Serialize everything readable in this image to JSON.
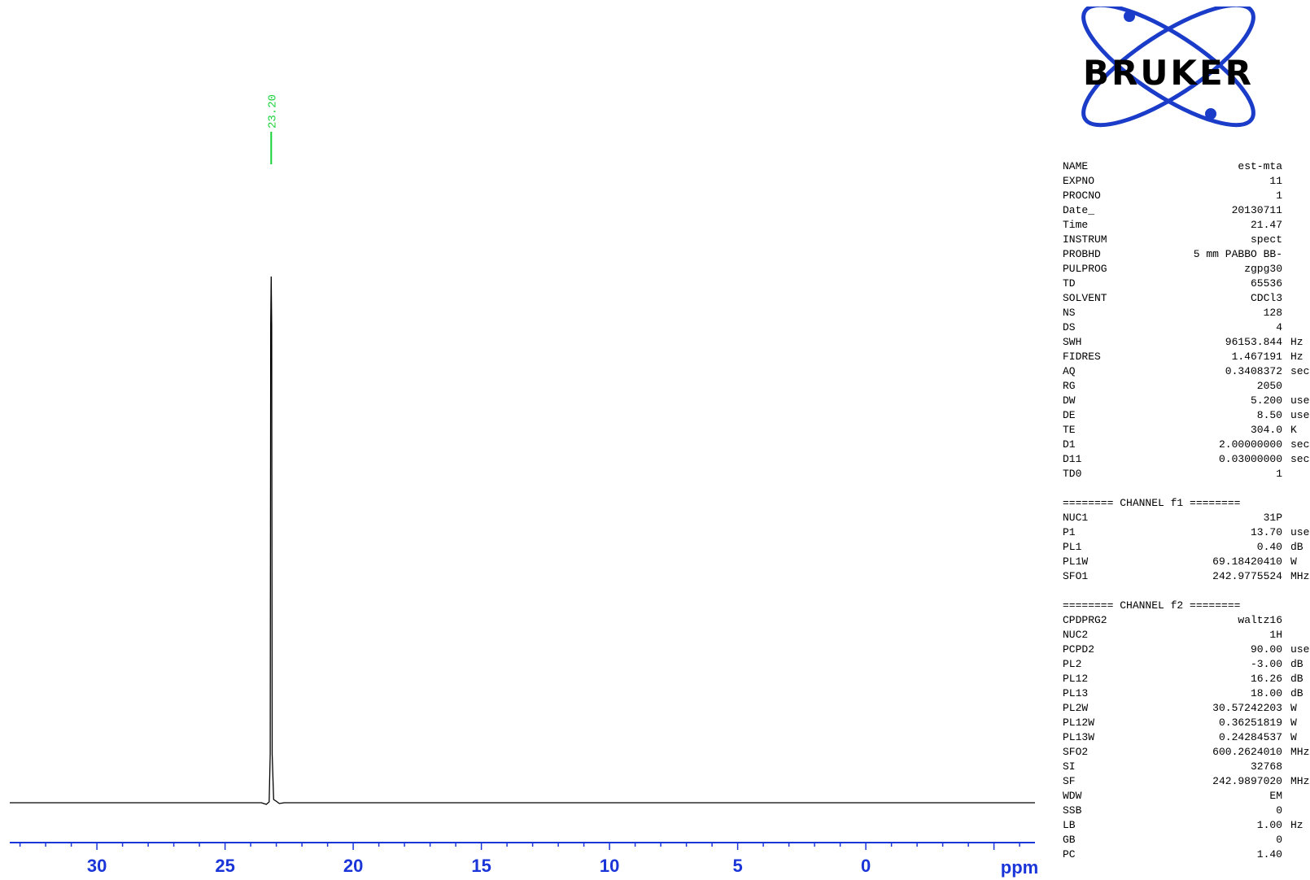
{
  "chart_data": {
    "type": "line",
    "x_axis": {
      "label": "ppm",
      "reversed": true,
      "range": [
        33.4,
        -6.6
      ],
      "ticks": [
        30,
        25,
        20,
        15,
        10,
        5,
        0
      ],
      "tick_labels": [
        "30",
        "25",
        "20",
        "15",
        "10",
        "5",
        "0"
      ],
      "color": "#1a35d8"
    },
    "peaks": [
      {
        "ppm": 23.2,
        "label": "23.20",
        "relative_height": 1.0
      }
    ],
    "peak_label_color": "#19d23a",
    "spectrum_color": "#000000"
  },
  "logo": {
    "text": "BRUKER",
    "color": "#1a3cc8"
  },
  "parameters": [
    {
      "name": "NAME",
      "value": "est-mta",
      "unit": ""
    },
    {
      "name": "EXPNO",
      "value": "11",
      "unit": ""
    },
    {
      "name": "PROCNO",
      "value": "1",
      "unit": ""
    },
    {
      "name": "Date_",
      "value": "20130711",
      "unit": ""
    },
    {
      "name": "Time",
      "value": "21.47",
      "unit": ""
    },
    {
      "name": "INSTRUM",
      "value": "spect",
      "unit": ""
    },
    {
      "name": "PROBHD",
      "value": "5 mm PABBO BB-",
      "unit": ""
    },
    {
      "name": "PULPROG",
      "value": "zgpg30",
      "unit": ""
    },
    {
      "name": "TD",
      "value": "65536",
      "unit": ""
    },
    {
      "name": "SOLVENT",
      "value": "CDCl3",
      "unit": ""
    },
    {
      "name": "NS",
      "value": "128",
      "unit": ""
    },
    {
      "name": "DS",
      "value": "4",
      "unit": ""
    },
    {
      "name": "SWH",
      "value": "96153.844",
      "unit": "Hz"
    },
    {
      "name": "FIDRES",
      "value": "1.467191",
      "unit": "Hz"
    },
    {
      "name": "AQ",
      "value": "0.3408372",
      "unit": "sec"
    },
    {
      "name": "RG",
      "value": "2050",
      "unit": ""
    },
    {
      "name": "DW",
      "value": "5.200",
      "unit": "usec"
    },
    {
      "name": "DE",
      "value": "8.50",
      "unit": "usec"
    },
    {
      "name": "TE",
      "value": "304.0",
      "unit": "K"
    },
    {
      "name": "D1",
      "value": "2.00000000",
      "unit": "sec"
    },
    {
      "name": "D11",
      "value": "0.03000000",
      "unit": "sec"
    },
    {
      "name": "TD0",
      "value": "1",
      "unit": ""
    },
    {
      "separator": "======== CHANNEL f1 ========"
    },
    {
      "name": "NUC1",
      "value": "31P",
      "unit": ""
    },
    {
      "name": "P1",
      "value": "13.70",
      "unit": "usec"
    },
    {
      "name": "PL1",
      "value": "0.40",
      "unit": "dB"
    },
    {
      "name": "PL1W",
      "value": "69.18420410",
      "unit": "W"
    },
    {
      "name": "SFO1",
      "value": "242.9775524",
      "unit": "MHz"
    },
    {
      "separator": "======== CHANNEL f2 ========"
    },
    {
      "name": "CPDPRG2",
      "value": "waltz16",
      "unit": ""
    },
    {
      "name": "NUC2",
      "value": "1H",
      "unit": ""
    },
    {
      "name": "PCPD2",
      "value": "90.00",
      "unit": "usec"
    },
    {
      "name": "PL2",
      "value": "-3.00",
      "unit": "dB"
    },
    {
      "name": "PL12",
      "value": "16.26",
      "unit": "dB"
    },
    {
      "name": "PL13",
      "value": "18.00",
      "unit": "dB"
    },
    {
      "name": "PL2W",
      "value": "30.57242203",
      "unit": "W"
    },
    {
      "name": "PL12W",
      "value": "0.36251819",
      "unit": "W"
    },
    {
      "name": "PL13W",
      "value": "0.24284537",
      "unit": "W"
    },
    {
      "name": "SFO2",
      "value": "600.2624010",
      "unit": "MHz"
    },
    {
      "name": "SI",
      "value": "32768",
      "unit": ""
    },
    {
      "name": "SF",
      "value": "242.9897020",
      "unit": "MHz"
    },
    {
      "name": "WDW",
      "value": "EM",
      "unit": ""
    },
    {
      "name": "SSB",
      "value": "0",
      "unit": ""
    },
    {
      "name": "LB",
      "value": "1.00",
      "unit": "Hz"
    },
    {
      "name": "GB",
      "value": "0",
      "unit": ""
    },
    {
      "name": "PC",
      "value": "1.40",
      "unit": ""
    }
  ]
}
